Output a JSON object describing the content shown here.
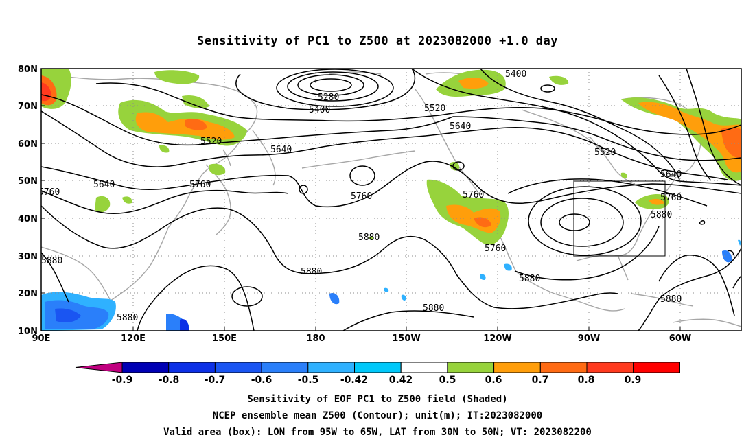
{
  "title": "Sensitivity of PC1 to Z500 at 2023082000 +1.0 day",
  "map": {
    "lon_ticks": [
      "90E",
      "120E",
      "150E",
      "180",
      "150W",
      "120W",
      "90W",
      "60W"
    ],
    "lat_ticks": [
      "80N",
      "70N",
      "60N",
      "50N",
      "40N",
      "30N",
      "20N",
      "10N"
    ],
    "contour_labels": [
      {
        "text": "5280"
      },
      {
        "text": "5400"
      },
      {
        "text": "5400"
      },
      {
        "text": "5520"
      },
      {
        "text": "5520"
      },
      {
        "text": "5520"
      },
      {
        "text": "5640"
      },
      {
        "text": "5640"
      },
      {
        "text": "5640"
      },
      {
        "text": "5640"
      },
      {
        "text": "5760"
      },
      {
        "text": "5760"
      },
      {
        "text": "5760"
      },
      {
        "text": "5760"
      },
      {
        "text": "5760"
      },
      {
        "text": "5760"
      },
      {
        "text": "5880"
      },
      {
        "text": "5880"
      },
      {
        "text": "5880"
      },
      {
        "text": "5880"
      },
      {
        "text": "5880"
      },
      {
        "text": "5880"
      },
      {
        "text": "5880"
      },
      {
        "text": "5880"
      }
    ],
    "valid_box": {
      "lon_range": [
        "95W",
        "65W"
      ],
      "lat_range": [
        "30N",
        "50N"
      ]
    }
  },
  "colorbar": {
    "labels": [
      "-0.9",
      "-0.8",
      "-0.7",
      "-0.6",
      "-0.5",
      "-0.42",
      "0.42",
      "0.5",
      "0.6",
      "0.7",
      "0.8",
      "0.9"
    ],
    "colors": [
      "#c0007f",
      "#0000b4",
      "#0c30e6",
      "#1a55f2",
      "#2a7ffa",
      "#2fb1ff",
      "#00c8fa",
      "#ffffff",
      "#97d33c",
      "#ff9e0b",
      "#ff6b14",
      "#ff3a1e",
      "#ff0000",
      "#f59bc8"
    ]
  },
  "captions": [
    "Sensitivity of EOF PC1 to Z500 field (Shaded)",
    "NCEP ensemble mean Z500 (Contour); unit(m); IT:2023082000",
    "Valid area (box): LON from 95W to 65W, LAT from 30N to 50N; VT: 2023082200"
  ]
}
